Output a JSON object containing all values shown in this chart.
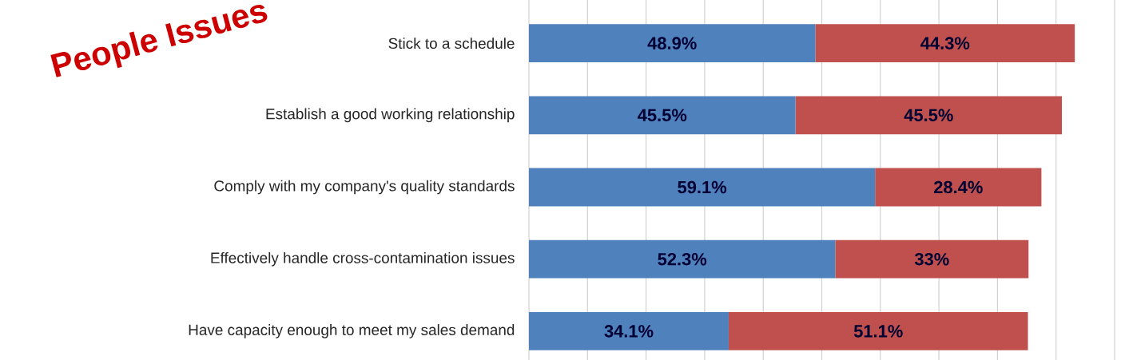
{
  "chart_data": {
    "type": "bar",
    "orientation": "horizontal",
    "stacked": true,
    "categories": [
      "Stick to a schedule",
      "Establish a good working relationship",
      "Comply with my company's quality standards",
      "Effectively handle cross-contamination issues",
      "Have capacity enough to meet my sales demand"
    ],
    "series": [
      {
        "color": "#4f81bd",
        "values": [
          48.9,
          45.5,
          59.1,
          52.3,
          34.1
        ],
        "value_labels": [
          "48.9%",
          "45.5%",
          "59.1%",
          "52.3%",
          "34.1%"
        ]
      },
      {
        "color": "#c0504d",
        "values": [
          44.3,
          45.5,
          28.4,
          33,
          51.1
        ],
        "value_labels": [
          "44.3%",
          "45.5%",
          "28.4%",
          "33%",
          "51.1%"
        ]
      }
    ],
    "xlim": [
      0,
      100
    ],
    "xticks": [
      {
        "value": 0,
        "label": null
      },
      {
        "value": 10,
        "label": null
      },
      {
        "value": 20,
        "label": null
      },
      {
        "value": 30,
        "label": null
      },
      {
        "value": 40,
        "label": null
      },
      {
        "value": 50,
        "label": null
      },
      {
        "value": 60,
        "label": null
      },
      {
        "value": 70,
        "label": null
      },
      {
        "value": 80,
        "label": null
      },
      {
        "value": 90,
        "label": null
      },
      {
        "value": 100,
        "label": null
      }
    ],
    "grid": "x",
    "annotations": [
      "People Issues"
    ]
  }
}
